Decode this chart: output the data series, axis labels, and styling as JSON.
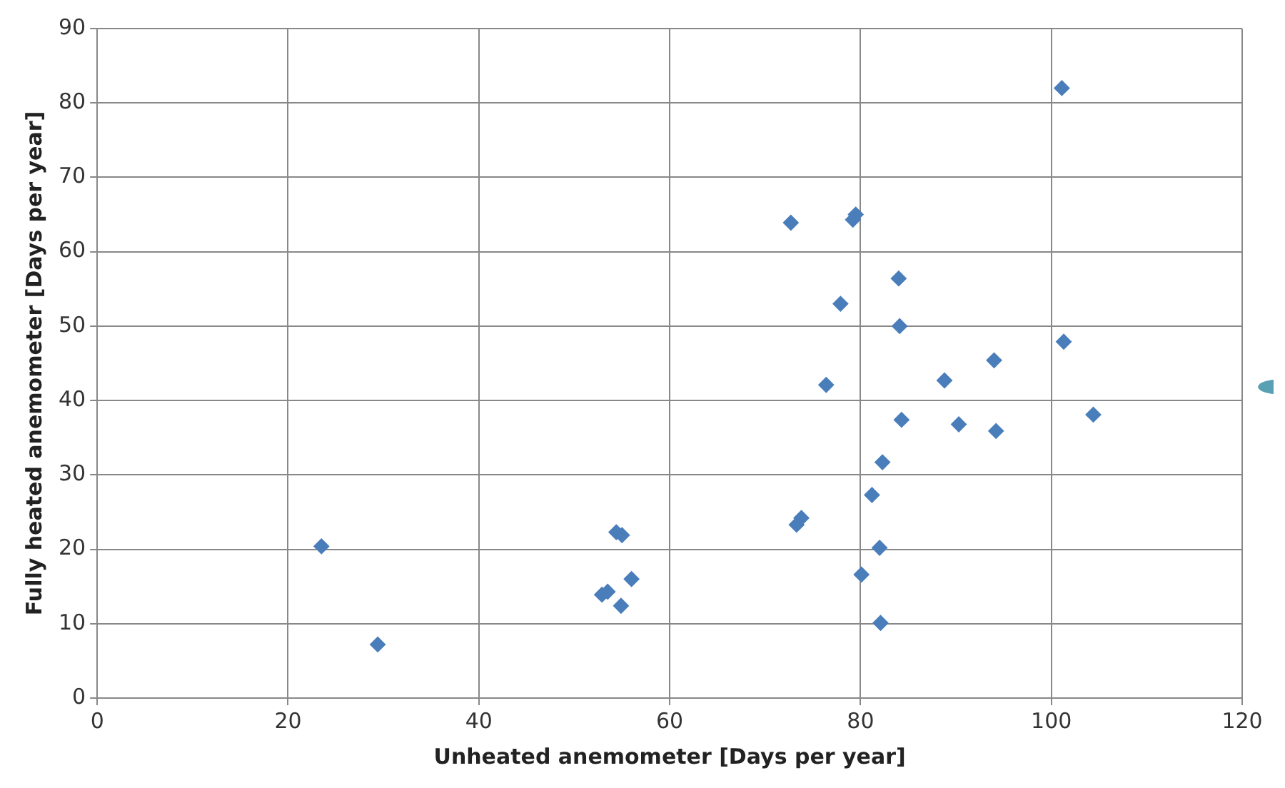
{
  "chart_data": {
    "type": "scatter",
    "xlabel": "Unheated anemometer [Days per year]",
    "ylabel": "Fully heated anemometer [Days per year]",
    "x": [
      23.5,
      29.4,
      52.9,
      53.5,
      54.4,
      55.0,
      54.9,
      56.0,
      72.7,
      73.3,
      73.8,
      76.4,
      77.9,
      79.2,
      79.5,
      80.1,
      81.2,
      82.0,
      82.1,
      82.3,
      84.0,
      84.1,
      84.3,
      88.8,
      90.3,
      94.0,
      94.2,
      101.1,
      101.3,
      104.4
    ],
    "series": [
      {
        "color": "#4a7ebb",
        "values": [
          20.4,
          7.2,
          13.9,
          14.3,
          22.3,
          21.9,
          12.4,
          16.0,
          63.9,
          23.3,
          24.2,
          42.1,
          53.0,
          64.3,
          65.0,
          16.6,
          27.3,
          20.2,
          10.1,
          31.7,
          56.4,
          50.0,
          37.4,
          42.7,
          36.8,
          45.4,
          35.9,
          82.0,
          47.9,
          38.1
        ]
      }
    ],
    "xlim": [
      0,
      120
    ],
    "xticks": [
      0,
      20,
      40,
      60,
      80,
      100,
      120
    ],
    "ylim": [
      0,
      90
    ],
    "yticks": [
      0,
      10,
      20,
      30,
      40,
      50,
      60,
      70,
      80,
      90
    ],
    "grid": true,
    "legend": false,
    "marker": "diamond"
  }
}
